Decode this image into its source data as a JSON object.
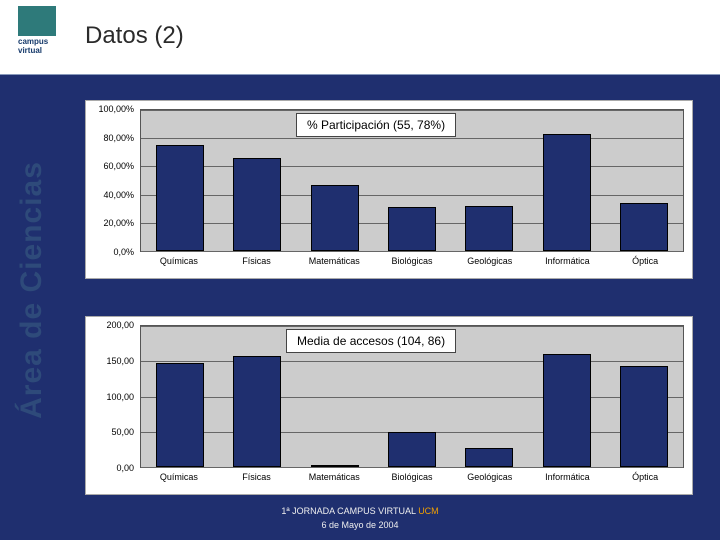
{
  "slide": {
    "title": "Datos (2)",
    "side_label": "Área de Ciencias",
    "logo_text": "campus\nvirtual",
    "background_color": "#1f2f6f"
  },
  "chart1": {
    "type": "bar",
    "title": "% Participación  (55, 78%)",
    "title_fontsize": 12,
    "categories": [
      "Químicas",
      "Físicas",
      "Matemáticas",
      "Biológicas",
      "Geológicas",
      "Informática",
      "Óptica"
    ],
    "values": [
      75,
      66,
      47,
      31,
      32,
      83,
      34
    ],
    "ylim": [
      0,
      100
    ],
    "yticks": [
      0,
      20,
      40,
      60,
      80,
      100
    ],
    "ytick_labels": [
      "0,0%",
      "20,00%",
      "40,00%",
      "60,00%",
      "80,00%",
      "100,00%"
    ],
    "bar_color": "#1f2f6f",
    "plot_bg": "#cccccc",
    "grid_color": "#666666",
    "label_fontsize": 9,
    "bar_width_rel": 0.62
  },
  "chart2": {
    "type": "bar",
    "title": "Media de accesos  (104, 86)",
    "title_fontsize": 12,
    "categories": [
      "Químicas",
      "Físicas",
      "Matemáticas",
      "Biológicas",
      "Geológicas",
      "Informática",
      "Óptica"
    ],
    "values": [
      147,
      158,
      3,
      49,
      27,
      160,
      143
    ],
    "ylim": [
      0,
      200
    ],
    "yticks": [
      0,
      50,
      100,
      150,
      200
    ],
    "ytick_labels": [
      "0,00",
      "50,00",
      "100,00",
      "150,00",
      "200,00"
    ],
    "bar_color": "#1f2f6f",
    "plot_bg": "#cccccc",
    "grid_color": "#666666",
    "label_fontsize": 9,
    "bar_width_rel": 0.62
  },
  "footer": {
    "line1_pre": "1ª JORNADA CAMPUS VIRTUAL ",
    "line1_ucm": "UCM",
    "line2": "6 de Mayo de 2004"
  }
}
